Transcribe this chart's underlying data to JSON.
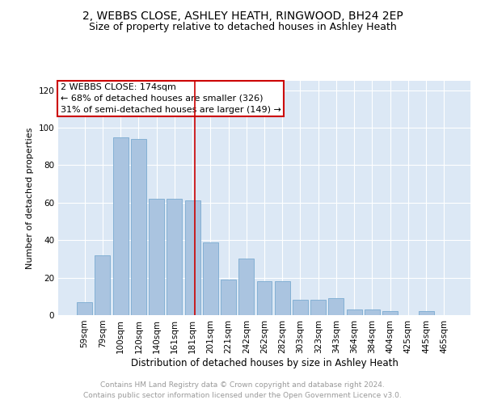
{
  "title1": "2, WEBBS CLOSE, ASHLEY HEATH, RINGWOOD, BH24 2EP",
  "title2": "Size of property relative to detached houses in Ashley Heath",
  "xlabel": "Distribution of detached houses by size in Ashley Heath",
  "ylabel": "Number of detached properties",
  "categories": [
    "59sqm",
    "79sqm",
    "100sqm",
    "120sqm",
    "140sqm",
    "161sqm",
    "181sqm",
    "201sqm",
    "221sqm",
    "242sqm",
    "262sqm",
    "282sqm",
    "303sqm",
    "323sqm",
    "343sqm",
    "364sqm",
    "384sqm",
    "404sqm",
    "425sqm",
    "445sqm",
    "465sqm"
  ],
  "values": [
    7,
    32,
    95,
    94,
    62,
    62,
    61,
    39,
    19,
    30,
    18,
    18,
    8,
    8,
    9,
    3,
    3,
    2,
    0,
    2,
    0
  ],
  "bar_color": "#aac4e0",
  "bar_edgecolor": "#7aaad0",
  "vline_color": "#cc0000",
  "annotation_lines": [
    "2 WEBBS CLOSE: 174sqm",
    "← 68% of detached houses are smaller (326)",
    "31% of semi-detached houses are larger (149) →"
  ],
  "annotation_box_edgecolor": "#cc0000",
  "annotation_box_facecolor": "#ffffff",
  "ylim": [
    0,
    125
  ],
  "yticks": [
    0,
    20,
    40,
    60,
    80,
    100,
    120
  ],
  "footer1": "Contains HM Land Registry data © Crown copyright and database right 2024.",
  "footer2": "Contains public sector information licensed under the Open Government Licence v3.0.",
  "plot_bg_color": "#dce8f5",
  "title1_fontsize": 10,
  "title2_fontsize": 9,
  "xlabel_fontsize": 8.5,
  "ylabel_fontsize": 8,
  "tick_fontsize": 7.5,
  "footer_fontsize": 6.5,
  "annotation_fontsize": 8
}
